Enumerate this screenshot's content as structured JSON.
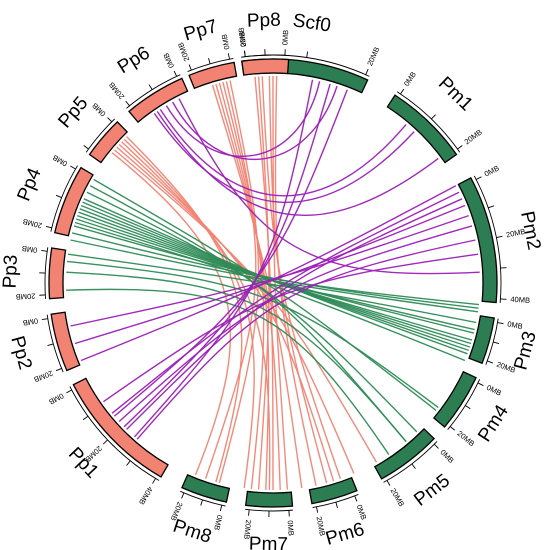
{
  "colors": {
    "pp_fill": "#f28372",
    "pm_fill": "#2d7d52",
    "outline": "#000000",
    "link_pp": "#f28372",
    "link_pm": "#2e8b57",
    "link_cross": "#9b1fb8"
  },
  "tick_unit": "MB",
  "chromosomes": [
    {
      "id": "Scf0",
      "label": "Scf0",
      "group": "pm",
      "start_deg": -8,
      "end_deg": 25,
      "ticks": [
        0,
        10,
        20
      ],
      "labeled_ticks": [
        "0MB",
        "20MB"
      ]
    },
    {
      "id": "Pm1",
      "label": "Pm1",
      "group": "pm",
      "start_deg": 33,
      "end_deg": 55,
      "ticks": [
        0,
        10,
        20
      ],
      "labeled_ticks": [
        "0MB",
        "20MB"
      ]
    },
    {
      "id": "Pm2",
      "label": "Pm2",
      "group": "pm",
      "start_deg": 62,
      "end_deg": 95,
      "ticks": [
        0,
        10,
        20,
        30,
        40
      ],
      "labeled_ticks": [
        "0MB",
        "20MB",
        "40MB"
      ]
    },
    {
      "id": "Pm3",
      "label": "Pm3",
      "group": "pm",
      "start_deg": 99,
      "end_deg": 111,
      "ticks": [
        0,
        10,
        20
      ],
      "labeled_ticks": [
        "0MB",
        "20MB"
      ]
    },
    {
      "id": "Pm4",
      "label": "Pm4",
      "group": "pm",
      "start_deg": 115,
      "end_deg": 130,
      "ticks": [
        0,
        10,
        20
      ],
      "labeled_ticks": [
        "0MB",
        "20MB"
      ]
    },
    {
      "id": "Pm5",
      "label": "Pm5",
      "group": "pm",
      "start_deg": 134,
      "end_deg": 151,
      "ticks": [
        0,
        10,
        20
      ],
      "labeled_ticks": [
        "0MB",
        "20MB"
      ]
    },
    {
      "id": "Pm6",
      "label": "Pm6",
      "group": "pm",
      "start_deg": 158,
      "end_deg": 170,
      "ticks": [
        0,
        10,
        20
      ],
      "labeled_ticks": [
        "0MB",
        "20MB"
      ]
    },
    {
      "id": "Pm7",
      "label": "Pm7",
      "group": "pm",
      "start_deg": 175,
      "end_deg": 187,
      "ticks": [
        0,
        10,
        20
      ],
      "labeled_ticks": [
        "0MB",
        "20MB"
      ]
    },
    {
      "id": "Pm8",
      "label": "Pm8",
      "group": "pm",
      "start_deg": 192,
      "end_deg": 204,
      "ticks": [
        0,
        10,
        20
      ],
      "labeled_ticks": [
        "0MB",
        "20MB"
      ]
    },
    {
      "id": "Pp1",
      "label": "Pp1",
      "group": "pp",
      "start_deg": 210,
      "end_deg": 243,
      "ticks": [
        0,
        10,
        20,
        30,
        40
      ],
      "labeled_ticks": [
        "0MB",
        "20MB",
        "40MB"
      ]
    },
    {
      "id": "Pp2",
      "label": "Pp2",
      "group": "pp",
      "start_deg": 247,
      "end_deg": 262,
      "ticks": [
        0,
        10,
        20
      ],
      "labeled_ticks": [
        "0MB",
        "20MB"
      ]
    },
    {
      "id": "Pp3",
      "label": "Pp3",
      "group": "pp",
      "start_deg": 266,
      "end_deg": 279,
      "ticks": [
        0,
        10,
        20
      ],
      "labeled_ticks": [
        "0MB",
        "20MB"
      ]
    },
    {
      "id": "Pp4",
      "label": "Pp4",
      "group": "pp",
      "start_deg": 283,
      "end_deg": 301,
      "ticks": [
        0,
        10,
        20
      ],
      "labeled_ticks": [
        "0MB",
        "20MB"
      ]
    },
    {
      "id": "Pp5",
      "label": "Pp5",
      "group": "pp",
      "start_deg": 305,
      "end_deg": 316,
      "ticks": [
        0,
        10
      ],
      "labeled_ticks": [
        "0MB"
      ]
    },
    {
      "id": "Pp6",
      "label": "Pp6",
      "group": "pp",
      "start_deg": 320,
      "end_deg": 336,
      "ticks": [
        0,
        10,
        20
      ],
      "labeled_ticks": [
        "0MB",
        "20MB"
      ]
    },
    {
      "id": "Pp7",
      "label": "Pp7",
      "group": "pp",
      "start_deg": 338,
      "end_deg": 350,
      "ticks": [
        0,
        10,
        20
      ],
      "labeled_ticks": [
        "0MB",
        "20MB"
      ]
    },
    {
      "id": "Pp8",
      "label": "Pp8",
      "group": "pp",
      "start_deg": 352,
      "end_deg": 364,
      "ticks": [
        0,
        10,
        20
      ],
      "labeled_ticks": [
        "0MB",
        "20MB"
      ]
    }
  ],
  "links": [
    {
      "color": "link_pp",
      "a": 343,
      "b": 172
    },
    {
      "color": "link_pp",
      "a": 344,
      "b": 178
    },
    {
      "color": "link_pp",
      "a": 345,
      "b": 182
    },
    {
      "color": "link_pp",
      "a": 346,
      "b": 186
    },
    {
      "color": "link_pp",
      "a": 347,
      "b": 199
    },
    {
      "color": "link_pp",
      "a": 348,
      "b": 195
    },
    {
      "color": "link_pp",
      "a": 355,
      "b": 180
    },
    {
      "color": "link_pp",
      "a": 356,
      "b": 184
    },
    {
      "color": "link_pp",
      "a": 357,
      "b": 161
    },
    {
      "color": "link_pp",
      "a": 359,
      "b": 165
    },
    {
      "color": "link_pp",
      "a": 360,
      "b": 176
    },
    {
      "color": "link_pp",
      "a": 361,
      "b": 168
    },
    {
      "color": "link_pp",
      "a": 310,
      "b": 150
    },
    {
      "color": "link_pp",
      "a": 311,
      "b": 157
    },
    {
      "color": "link_pp",
      "a": 312,
      "b": 163
    },
    {
      "color": "link_pp",
      "a": 313,
      "b": 181
    },
    {
      "color": "link_pp",
      "a": 314,
      "b": 188
    },
    {
      "color": "link_pp",
      "a": 315,
      "b": 196
    },
    {
      "color": "link_pp",
      "a": 309,
      "b": 202
    },
    {
      "color": "link_pm",
      "a": 288,
      "b": 103
    },
    {
      "color": "link_pm",
      "a": 289,
      "b": 104
    },
    {
      "color": "link_pm",
      "a": 290,
      "b": 106
    },
    {
      "color": "link_pm",
      "a": 291,
      "b": 107
    },
    {
      "color": "link_pm",
      "a": 292,
      "b": 108
    },
    {
      "color": "link_pm",
      "a": 293,
      "b": 109
    },
    {
      "color": "link_pm",
      "a": 294,
      "b": 110
    },
    {
      "color": "link_pm",
      "a": 296,
      "b": 136
    },
    {
      "color": "link_pm",
      "a": 298,
      "b": 140
    },
    {
      "color": "link_pm",
      "a": 282,
      "b": 98
    },
    {
      "color": "link_pm",
      "a": 278,
      "b": 101
    },
    {
      "color": "link_pm",
      "a": 276,
      "b": 127
    },
    {
      "color": "link_pm",
      "a": 273,
      "b": 140
    },
    {
      "color": "link_pm",
      "a": 268,
      "b": 146
    },
    {
      "color": "link_pm",
      "a": 300,
      "b": 128
    },
    {
      "color": "link_pm",
      "a": 286,
      "b": 97
    },
    {
      "color": "link_pm",
      "a": 284,
      "b": 96
    },
    {
      "color": "link_pm",
      "a": 287,
      "b": 112
    },
    {
      "color": "link_cross",
      "a": 325,
      "b": 43
    },
    {
      "color": "link_cross",
      "a": 327,
      "b": 40
    },
    {
      "color": "link_cross",
      "a": 329,
      "b": 13
    },
    {
      "color": "link_cross",
      "a": 331,
      "b": 18
    },
    {
      "color": "link_cross",
      "a": 333,
      "b": 87
    },
    {
      "color": "link_cross",
      "a": 326,
      "b": 53
    },
    {
      "color": "link_cross",
      "a": 248,
      "b": 62
    },
    {
      "color": "link_cross",
      "a": 253,
      "b": 68
    },
    {
      "color": "link_cross",
      "a": 258,
      "b": 71
    },
    {
      "color": "link_cross",
      "a": 225,
      "b": 66
    },
    {
      "color": "link_cross",
      "a": 228,
      "b": 74
    },
    {
      "color": "link_cross",
      "a": 221,
      "b": 78
    },
    {
      "color": "link_cross",
      "a": 231,
      "b": 64
    },
    {
      "color": "link_cross",
      "a": 235,
      "b": 82
    },
    {
      "color": "link_cross",
      "a": 230,
      "b": 21
    },
    {
      "color": "link_cross",
      "a": 226,
      "b": 16
    },
    {
      "color": "link_cross",
      "a": 222,
      "b": 11
    }
  ]
}
